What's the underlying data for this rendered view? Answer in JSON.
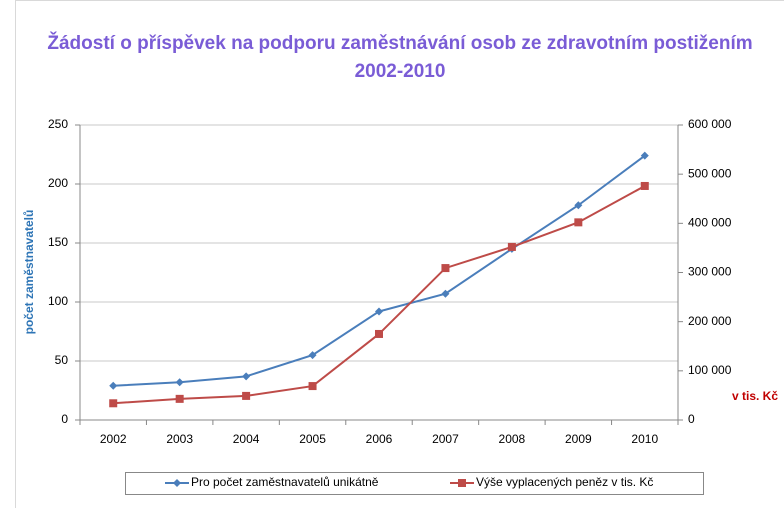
{
  "chart_data": {
    "type": "line",
    "title": "Žádostí o příspěvek na podporu zaměstnávání osob ze zdravotním postižením 2002-2010",
    "y_label": "počet zaměstnavatelů",
    "y2_label": "v tis. Kč",
    "categories": [
      "2002",
      "2003",
      "2004",
      "2005",
      "2006",
      "2007",
      "2008",
      "2009",
      "2010"
    ],
    "series": [
      {
        "name": "Pro počet zaměstnavatelů unikátně",
        "color": "#4a7ebb",
        "marker": "diamond",
        "values": [
          29,
          32,
          37,
          55,
          92,
          107,
          145,
          182,
          224
        ]
      },
      {
        "name": "Výše vyplacených peněz v tis. Kč",
        "color": "#be4b48",
        "marker": "square",
        "axis": "y2",
        "values": [
          34000,
          43000,
          49000,
          69000,
          175000,
          309000,
          352000,
          402000,
          476000
        ]
      }
    ],
    "ylim": [
      0,
      250
    ],
    "yticks": [
      0,
      50,
      100,
      150,
      200,
      250
    ],
    "y2lim": [
      0,
      600000
    ],
    "y2ticks": [
      0,
      {
        "value": 100000,
        "label": "100 000"
      },
      {
        "value": 200000,
        "label": "200 000"
      },
      {
        "value": 300000,
        "label": "300 000"
      },
      {
        "value": 400000,
        "label": "400 000"
      },
      {
        "value": 500000,
        "label": "500 000"
      },
      {
        "value": 600000,
        "label": "600 000"
      }
    ],
    "grid": true,
    "legend": "bottom"
  }
}
